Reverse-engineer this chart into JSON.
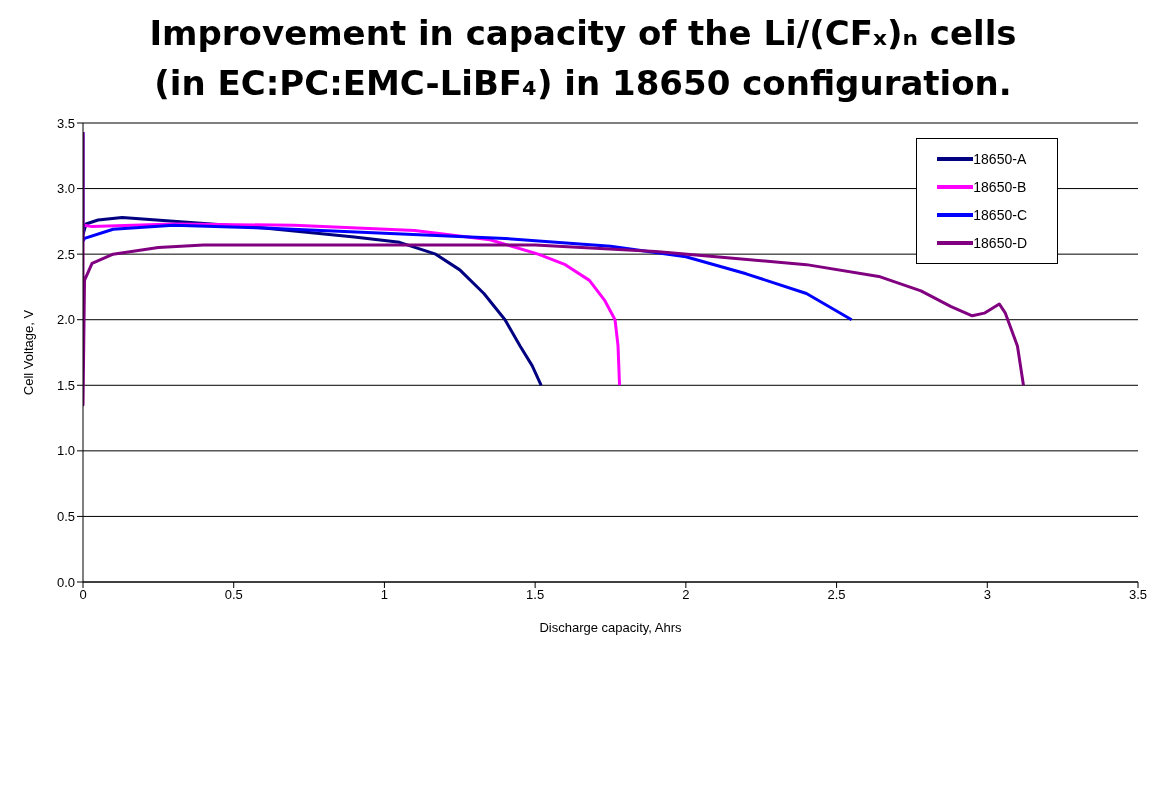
{
  "chart_data": {
    "type": "line",
    "title": "Improvement in capacity of the Li/(CFₓ)ₙ cells (in EC:PC:EMC-LiBF₄) in 18650 configuration.",
    "xlabel": "Discharge capacity, Ahrs",
    "ylabel": "Cell Voltage, V",
    "xlim": [
      0,
      3.5
    ],
    "xticks": [
      0,
      0.5,
      1,
      1.5,
      2,
      2.5,
      3,
      3.5
    ],
    "ylim": [
      0,
      3.5
    ],
    "yticks": [
      {
        "value": 0,
        "label": "0.0"
      },
      {
        "value": 0.5,
        "label": "0.5"
      },
      {
        "value": 1,
        "label": "1.0"
      },
      {
        "value": 1.5,
        "label": "1.5"
      },
      {
        "value": 2,
        "label": "2.0"
      },
      {
        "value": 2.5,
        "label": "2.5"
      },
      {
        "value": 3,
        "label": "3.0"
      },
      {
        "value": 3.5,
        "label": "3.5"
      }
    ],
    "grid": "y",
    "legend": "top right",
    "marker": "none",
    "line_style": "solid",
    "series": [
      {
        "name": "18650-A",
        "color": "#000080",
        "x": [
          0,
          0.01,
          0.05,
          0.13,
          0.3,
          0.6,
          0.9,
          1.05,
          1.17,
          1.25,
          1.33,
          1.4,
          1.45,
          1.49,
          1.52
        ],
        "values": [
          2.65,
          2.73,
          2.76,
          2.78,
          2.75,
          2.7,
          2.63,
          2.59,
          2.5,
          2.38,
          2.2,
          2.0,
          1.8,
          1.65,
          1.5
        ]
      },
      {
        "name": "18650-B",
        "color": "#ff00ff",
        "x": [
          0.005,
          0.03,
          0.3,
          0.7,
          1.1,
          1.35,
          1.51,
          1.6,
          1.68,
          1.73,
          1.765,
          1.775,
          1.78
        ],
        "values": [
          2.72,
          2.71,
          2.73,
          2.72,
          2.68,
          2.61,
          2.5,
          2.42,
          2.3,
          2.15,
          2.0,
          1.8,
          1.5
        ]
      },
      {
        "name": "18650-C",
        "color": "#0000ff",
        "x": [
          0,
          0,
          0.005,
          0.1,
          0.3,
          0.6,
          1.0,
          1.4,
          1.75,
          2.0,
          2.2,
          2.4,
          2.55
        ],
        "values": [
          3.43,
          2.6,
          2.62,
          2.69,
          2.72,
          2.7,
          2.66,
          2.62,
          2.56,
          2.48,
          2.35,
          2.2,
          2.0
        ]
      },
      {
        "name": "18650-D",
        "color": "#800080",
        "x": [
          0,
          0,
          0.005,
          0.03,
          0.1,
          0.25,
          0.4,
          1.5,
          1.9,
          2.1,
          2.4,
          2.64,
          2.78,
          2.88,
          2.95,
          2.99,
          3.04,
          3.06,
          3.1,
          3.12
        ],
        "values": [
          3.43,
          1.35,
          2.3,
          2.43,
          2.5,
          2.55,
          2.57,
          2.57,
          2.52,
          2.48,
          2.42,
          2.33,
          2.22,
          2.1,
          2.03,
          2.05,
          2.12,
          2.05,
          1.8,
          1.5
        ]
      }
    ]
  }
}
